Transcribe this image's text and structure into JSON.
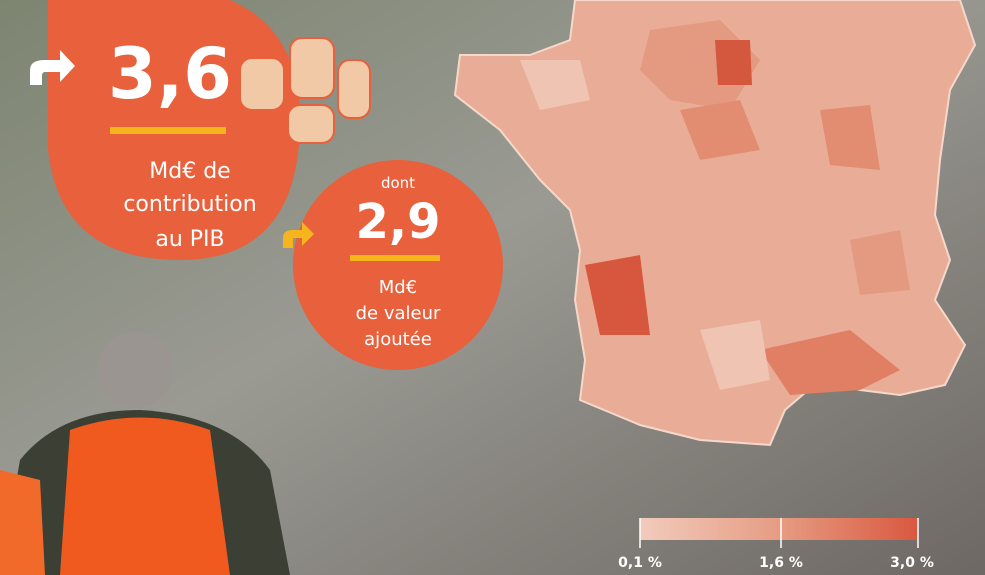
{
  "headline": {
    "value": "3,6",
    "lines": [
      "Md€ de",
      "contribution",
      "au PIB"
    ]
  },
  "sub": {
    "prefix": "dont",
    "value": "2,9",
    "lines": [
      "Md€",
      "de valeur",
      "ajoutée"
    ]
  },
  "legend": {
    "ticks": [
      "0,1 %",
      "1,6 %",
      "3,0 %"
    ]
  }
}
